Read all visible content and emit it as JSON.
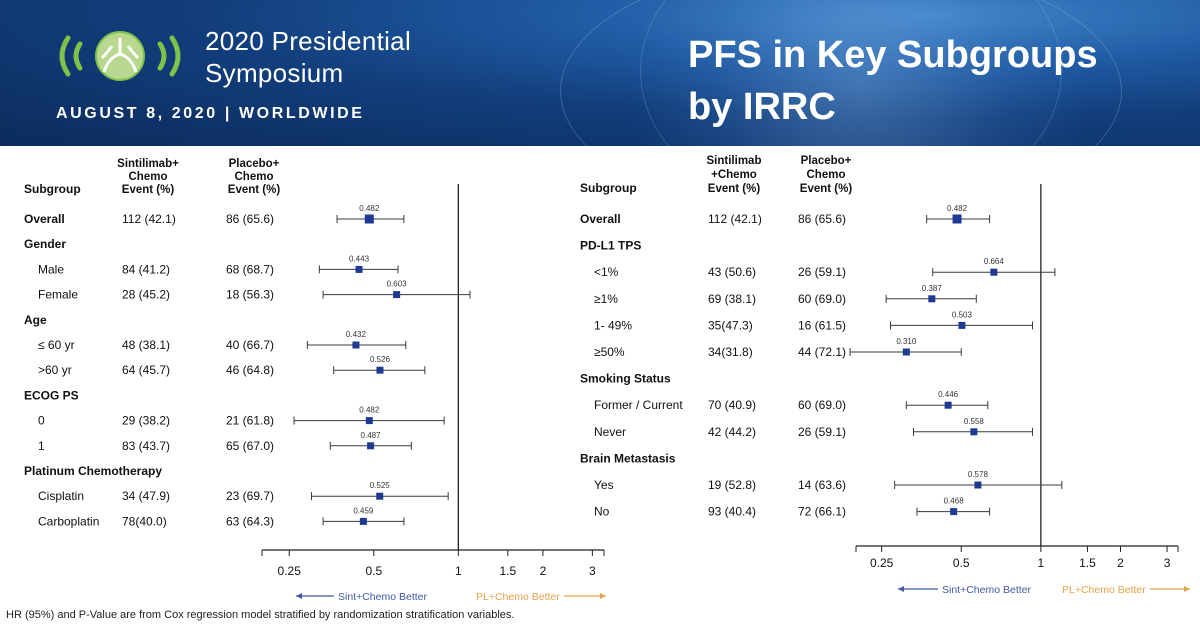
{
  "banner": {
    "symposium_line1": "2020 Presidential",
    "symposium_line2": "Symposium",
    "dateline": "AUGUST 8, 2020 | WORLDWIDE",
    "title_line1": "PFS in Key Subgroups",
    "title_line2": "by IRRC",
    "colors": {
      "banner_dark": "#0c2b5c",
      "banner_light": "#3f82c8",
      "logo_green": "#7ec24a"
    }
  },
  "footnote": "HR (95%) and P-Value are from Cox regression model stratified by randomization stratification variables.",
  "chart_data": [
    {
      "type": "forest",
      "headers": {
        "subgroup": "Subgroup",
        "arm1": [
          "Sintilimab+",
          "Chemo",
          "Event (%)"
        ],
        "arm2": [
          "Placebo+",
          "Chemo",
          "Event (%)"
        ]
      },
      "x_scale": "log",
      "xlim": [
        0.2,
        3.3
      ],
      "ticks": [
        0.25,
        0.5,
        1,
        1.5,
        2,
        3
      ],
      "tick_labels": [
        "0.25",
        "0.5",
        "1",
        "1.5",
        "2",
        "3"
      ],
      "reference_line": 1,
      "left_arrow": "Sint+Chemo Better",
      "right_arrow": "PL+Chemo Better",
      "colors": {
        "marker": "#1f3a93",
        "ci": "#3a3a3a",
        "left_arrow": "#3f5aa8",
        "right_arrow": "#e8a24b"
      },
      "rows": [
        {
          "label": "Overall",
          "header": false,
          "bold": true,
          "arm1": "112 (42.1)",
          "arm2": "86 (65.6)",
          "hr": 0.482,
          "lo": 0.37,
          "hi": 0.64
        },
        {
          "label": "Gender",
          "header": true
        },
        {
          "label": "Male",
          "arm1": "84 (41.2)",
          "arm2": "68 (68.7)",
          "hr": 0.443,
          "lo": 0.32,
          "hi": 0.61
        },
        {
          "label": "Female",
          "arm1": "28 (45.2)",
          "arm2": "18 (56.3)",
          "hr": 0.603,
          "lo": 0.33,
          "hi": 1.1
        },
        {
          "label": "Age",
          "header": true
        },
        {
          "label": "≤ 60 yr",
          "arm1": "48 (38.1)",
          "arm2": "40 (66.7)",
          "hr": 0.432,
          "lo": 0.29,
          "hi": 0.65
        },
        {
          "label": ">60 yr",
          "arm1": "64 (45.7)",
          "arm2": "46 (64.8)",
          "hr": 0.526,
          "lo": 0.36,
          "hi": 0.76
        },
        {
          "label": "ECOG PS",
          "header": true
        },
        {
          "label": "0",
          "arm1": "29 (38.2)",
          "arm2": "21 (61.8)",
          "hr": 0.482,
          "lo": 0.26,
          "hi": 0.89
        },
        {
          "label": "1",
          "arm1": "83 (43.7)",
          "arm2": "65 (67.0)",
          "hr": 0.487,
          "lo": 0.35,
          "hi": 0.68
        },
        {
          "label": "Platinum Chemotherapy",
          "header": true
        },
        {
          "label": "Cisplatin",
          "arm1": "34 (47.9)",
          "arm2": "23 (69.7)",
          "hr": 0.525,
          "lo": 0.3,
          "hi": 0.92
        },
        {
          "label": "Carboplatin",
          "arm1": "78(40.0)",
          "arm2": "63 (64.3)",
          "hr": 0.459,
          "lo": 0.33,
          "hi": 0.64
        }
      ]
    },
    {
      "type": "forest",
      "headers": {
        "subgroup": "Subgroup",
        "arm1": [
          "Sintilimab",
          "+Chemo",
          "Event (%)"
        ],
        "arm2": [
          "Placebo+",
          "Chemo",
          "Event (%)"
        ]
      },
      "x_scale": "log",
      "xlim": [
        0.2,
        3.3
      ],
      "ticks": [
        0.25,
        0.5,
        1,
        1.5,
        2,
        3
      ],
      "tick_labels": [
        "0.25",
        "0.5",
        "1",
        "1.5",
        "2",
        "3"
      ],
      "reference_line": 1,
      "left_arrow": "Sint+Chemo Better",
      "right_arrow": "PL+Chemo Better",
      "colors": {
        "marker": "#1f3a93",
        "ci": "#3a3a3a",
        "left_arrow": "#3f5aa8",
        "right_arrow": "#e8a24b"
      },
      "rows": [
        {
          "label": "Overall",
          "header": false,
          "bold": true,
          "arm1": "112 (42.1)",
          "arm2": "86 (65.6)",
          "hr": 0.482,
          "lo": 0.37,
          "hi": 0.64
        },
        {
          "label": "PD-L1 TPS",
          "header": true
        },
        {
          "label": "<1%",
          "arm1": "43 (50.6)",
          "arm2": "26 (59.1)",
          "hr": 0.664,
          "lo": 0.39,
          "hi": 1.13
        },
        {
          "label": "≥1%",
          "arm1": "69 (38.1)",
          "arm2": "60 (69.0)",
          "hr": 0.387,
          "lo": 0.26,
          "hi": 0.57
        },
        {
          "label": "1- 49%",
          "arm1": "35(47.3)",
          "arm2": "16 (61.5)",
          "hr": 0.503,
          "lo": 0.27,
          "hi": 0.93
        },
        {
          "label": "≥50%",
          "arm1": "34(31.8)",
          "arm2": "44 (72.1)",
          "hr": 0.31,
          "lo": 0.19,
          "hi": 0.5
        },
        {
          "label": "Smoking Status",
          "header": true
        },
        {
          "label": "Former / Current",
          "arm1": "70 (40.9)",
          "arm2": "60 (69.0)",
          "hr": 0.446,
          "lo": 0.31,
          "hi": 0.63
        },
        {
          "label": "Never",
          "arm1": "42 (44.2)",
          "arm2": "26 (59.1)",
          "hr": 0.558,
          "lo": 0.33,
          "hi": 0.93
        },
        {
          "label": "Brain Metastasis",
          "header": true
        },
        {
          "label": "Yes",
          "arm1": "19 (52.8)",
          "arm2": "14 (63.6)",
          "hr": 0.578,
          "lo": 0.28,
          "hi": 1.2
        },
        {
          "label": "No",
          "arm1": "93 (40.4)",
          "arm2": "72 (66.1)",
          "hr": 0.468,
          "lo": 0.34,
          "hi": 0.64
        }
      ]
    }
  ]
}
